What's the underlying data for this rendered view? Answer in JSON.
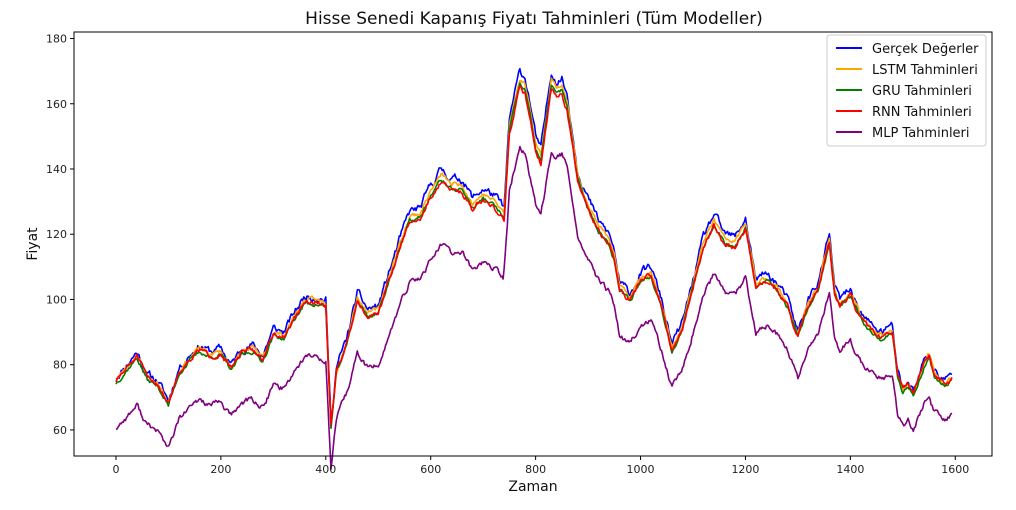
{
  "chart_data": {
    "type": "line",
    "title": "Hisse Senedi Kapanış Fiyatı Tahminleri (Tüm Modeller)",
    "xlabel": "Zaman",
    "ylabel": "Fiyat",
    "xlim": [
      -80,
      1670
    ],
    "ylim": [
      52,
      182
    ],
    "xticks": [
      0,
      200,
      400,
      600,
      800,
      1000,
      1200,
      1400,
      1600
    ],
    "yticks": [
      60,
      80,
      100,
      120,
      140,
      160,
      180
    ],
    "grid": false,
    "legend_position": "top-right",
    "anchors": [
      [
        0,
        76
      ],
      [
        20,
        80
      ],
      [
        40,
        84
      ],
      [
        60,
        77
      ],
      [
        80,
        75
      ],
      [
        100,
        69
      ],
      [
        120,
        79
      ],
      [
        140,
        83
      ],
      [
        160,
        86
      ],
      [
        180,
        84
      ],
      [
        200,
        85
      ],
      [
        220,
        80
      ],
      [
        240,
        85
      ],
      [
        260,
        86
      ],
      [
        280,
        83
      ],
      [
        300,
        91
      ],
      [
        320,
        90
      ],
      [
        340,
        96
      ],
      [
        360,
        101
      ],
      [
        380,
        101
      ],
      [
        400,
        100
      ],
      [
        410,
        62
      ],
      [
        420,
        79
      ],
      [
        440,
        88
      ],
      [
        460,
        102
      ],
      [
        480,
        97
      ],
      [
        500,
        98
      ],
      [
        520,
        108
      ],
      [
        540,
        118
      ],
      [
        560,
        127
      ],
      [
        580,
        128
      ],
      [
        600,
        135
      ],
      [
        620,
        140
      ],
      [
        640,
        137
      ],
      [
        660,
        137
      ],
      [
        680,
        131
      ],
      [
        700,
        134
      ],
      [
        720,
        132
      ],
      [
        740,
        128
      ],
      [
        750,
        155
      ],
      [
        760,
        163
      ],
      [
        770,
        170
      ],
      [
        780,
        168
      ],
      [
        790,
        160
      ],
      [
        800,
        150
      ],
      [
        810,
        146
      ],
      [
        820,
        158
      ],
      [
        830,
        170
      ],
      [
        840,
        167
      ],
      [
        850,
        168
      ],
      [
        860,
        163
      ],
      [
        880,
        140
      ],
      [
        900,
        131
      ],
      [
        920,
        124
      ],
      [
        940,
        120
      ],
      [
        950,
        115
      ],
      [
        960,
        105
      ],
      [
        980,
        102
      ],
      [
        1000,
        108
      ],
      [
        1020,
        110
      ],
      [
        1040,
        100
      ],
      [
        1060,
        86
      ],
      [
        1080,
        93
      ],
      [
        1100,
        106
      ],
      [
        1120,
        119
      ],
      [
        1140,
        126
      ],
      [
        1160,
        120
      ],
      [
        1180,
        119
      ],
      [
        1200,
        125
      ],
      [
        1220,
        106
      ],
      [
        1240,
        108
      ],
      [
        1260,
        105
      ],
      [
        1280,
        100
      ],
      [
        1300,
        90
      ],
      [
        1320,
        100
      ],
      [
        1340,
        106
      ],
      [
        1360,
        120
      ],
      [
        1370,
        104
      ],
      [
        1380,
        100
      ],
      [
        1400,
        103
      ],
      [
        1420,
        96
      ],
      [
        1440,
        92
      ],
      [
        1460,
        90
      ],
      [
        1480,
        92
      ],
      [
        1490,
        78
      ],
      [
        1500,
        73
      ],
      [
        1510,
        75
      ],
      [
        1520,
        72
      ],
      [
        1540,
        81
      ],
      [
        1550,
        84
      ],
      [
        1560,
        78
      ],
      [
        1580,
        75
      ],
      [
        1595,
        77
      ]
    ],
    "series": [
      {
        "name": "Gerçek Değerler",
        "color": "#0000ff",
        "offset": 0,
        "scale": 1.0,
        "noise": 1.9,
        "seed": 11
      },
      {
        "name": "LSTM Tahminleri",
        "color": "#ffa500",
        "offset": -0.8,
        "scale": 0.985,
        "noise": 1.1,
        "seed": 23
      },
      {
        "name": "GRU Tahminleri",
        "color": "#008000",
        "offset": -1.8,
        "scale": 0.975,
        "noise": 1.0,
        "seed": 37
      },
      {
        "name": "RNN Tahminleri",
        "color": "#ff0000",
        "offset": -1.2,
        "scale": 0.955,
        "noise": 1.2,
        "seed": 51
      },
      {
        "name": "MLP Tahminleri",
        "color": "#800080",
        "offset": -13,
        "scale": 0.88,
        "noise": 1.4,
        "seed": 77,
        "shift": 10
      }
    ]
  }
}
